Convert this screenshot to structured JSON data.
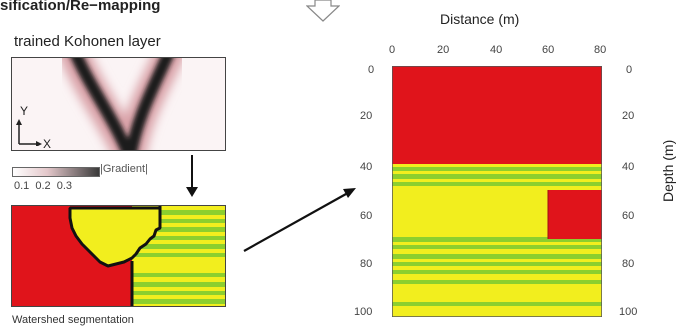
{
  "header": {
    "title": "sification/Re−mapping"
  },
  "left_panel": {
    "layer_title": "trained Kohonen layer",
    "axis_y": "Y",
    "axis_x": "X",
    "gradient_label": "|Gradient|",
    "gradient_ticks": "0.1 0.2 0.3",
    "segmentation_caption": "Watershed segmentation"
  },
  "main_plot": {
    "x_title": "Distance (m)",
    "y_title": "Depth (m)",
    "x_ticks": [
      "0",
      "20",
      "40",
      "60",
      "80"
    ],
    "y_ticks": [
      "0",
      "20",
      "40",
      "60",
      "80",
      "100"
    ]
  },
  "colors": {
    "red": "#e0141b",
    "yellow": "#f2ee1e",
    "green": "#8ccf2e",
    "outline": "#111111"
  },
  "icons": {
    "top_arrow": "down-arrow-icon",
    "small_arrow": "down-arrow-icon",
    "connector": "diagonal-arrow-icon"
  }
}
